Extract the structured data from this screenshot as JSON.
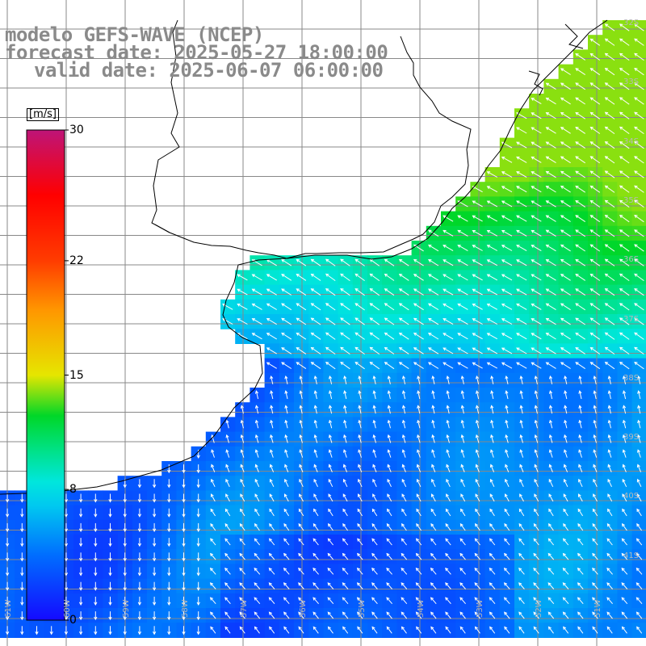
{
  "title": {
    "line1": "modelo GEFS-WAVE (NCEP)",
    "line2": "forecast date: 2025-05-27 18:00:00",
    "line3": "valid date: 2025-06-07 06:00:00"
  },
  "colorbar": {
    "unit": "[m/s]",
    "tick_labels": [
      "30",
      "22",
      "15",
      "8",
      "0"
    ],
    "tick_values": [
      30,
      22,
      15,
      8,
      0
    ],
    "range": [
      0,
      30
    ],
    "colors": [
      "#1a0dff",
      "#0080ff",
      "#00e5e5",
      "#00cc00",
      "#e6e600",
      "#ff8c00",
      "#ff0000",
      "#c21a78"
    ]
  },
  "map": {
    "lat_labels": [
      "32S",
      "33S",
      "34S",
      "35S",
      "36S",
      "37S",
      "38S",
      "39S",
      "40S",
      "41S"
    ],
    "lat_values": [
      -32,
      -33,
      -34,
      -35,
      -36,
      -37,
      -38,
      -39,
      -40,
      -41
    ],
    "lon_labels": [
      "61W",
      "60W",
      "59W",
      "58W",
      "57W",
      "56W",
      "55W",
      "54W",
      "53W",
      "52W",
      "51W"
    ],
    "lon_values": [
      -61,
      -60,
      -59,
      -58,
      -57,
      -56,
      -55,
      -54,
      -53,
      -52,
      -51
    ],
    "wind_direction": "arrows point from east/southeast toward the coast; southward near the southwest"
  },
  "colors": {
    "title_text": "#8a8a8a",
    "land": "#ffffff",
    "coastline": "#000000",
    "grid": "#888888",
    "arrow": "#ffffff"
  }
}
